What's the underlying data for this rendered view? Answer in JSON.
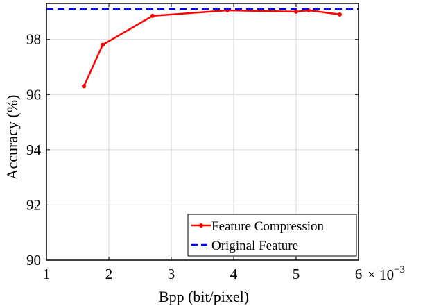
{
  "chart_data": {
    "type": "line",
    "xlabel": "Bpp (bit/pixel)",
    "ylabel": "Accuracy (%)",
    "x_multiplier": "× 10",
    "x_multiplier_exp": "−3",
    "xlim": [
      1,
      6
    ],
    "ylim": [
      90,
      99.3
    ],
    "x_ticks": [
      1,
      2,
      3,
      4,
      5,
      6
    ],
    "y_ticks": [
      90,
      92,
      94,
      96,
      98
    ],
    "grid": true,
    "legend_position": "bottom-right",
    "series": [
      {
        "name": "Feature Compression",
        "color": "#ff0000",
        "style": "solid",
        "marker": "dot",
        "x": [
          1.6,
          1.9,
          2.7,
          3.9,
          5.0,
          5.2,
          5.7
        ],
        "y": [
          96.3,
          97.8,
          98.85,
          99.05,
          99.0,
          99.05,
          98.9
        ]
      },
      {
        "name": "Original Feature",
        "color": "#0000ff",
        "style": "dashed",
        "marker": "none",
        "x": [
          1,
          6
        ],
        "y": [
          99.1,
          99.1
        ]
      }
    ]
  }
}
